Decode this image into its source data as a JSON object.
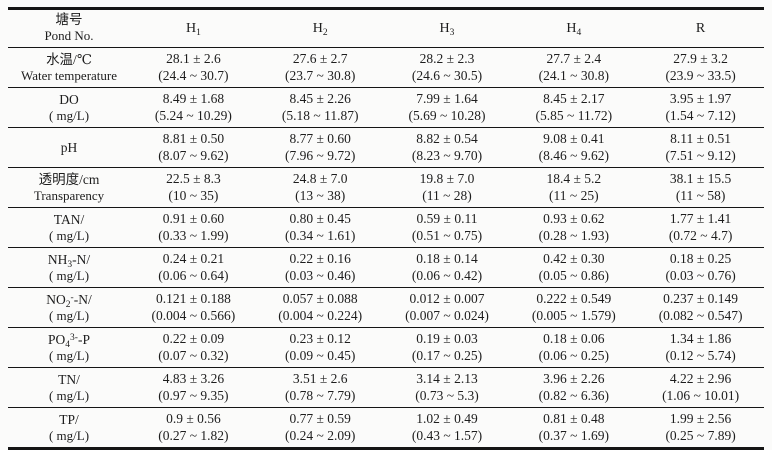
{
  "page": {
    "background": "#fbfbfa",
    "text_color": "#1d1d1d",
    "rule_color": "#151515"
  },
  "table": {
    "header": {
      "label_zh": "塘号",
      "label_en": "Pond No.",
      "columns": [
        {
          "base": "H",
          "sub": "1"
        },
        {
          "base": "H",
          "sub": "2"
        },
        {
          "base": "H",
          "sub": "3"
        },
        {
          "base": "H",
          "sub": "4"
        },
        {
          "base": "R",
          "sub": ""
        }
      ]
    },
    "rows": [
      {
        "key": "water-temperature",
        "label": [
          {
            "t": "水温/℃"
          }
        ],
        "label2": "Water temperature",
        "cells": [
          {
            "mean": "28.1 ± 2.6",
            "range": "(24.4 ~ 30.7)"
          },
          {
            "mean": "27.6 ± 2.7",
            "range": "(23.7 ~ 30.8)"
          },
          {
            "mean": "28.2 ± 2.3",
            "range": "(24.6 ~ 30.5)"
          },
          {
            "mean": "27.7 ± 2.4",
            "range": "(24.1 ~ 30.8)"
          },
          {
            "mean": "27.9 ± 3.2",
            "range": "(23.9 ~ 33.5)"
          }
        ]
      },
      {
        "key": "do",
        "label": [
          {
            "t": "DO"
          }
        ],
        "label2": "( mg/L)",
        "cells": [
          {
            "mean": "8.49 ± 1.68",
            "range": "(5.24 ~ 10.29)"
          },
          {
            "mean": "8.45 ± 2.26",
            "range": "(5.18 ~ 11.87)"
          },
          {
            "mean": "7.99 ± 1.64",
            "range": "(5.69 ~ 10.28)"
          },
          {
            "mean": "8.45 ± 2.17",
            "range": "(5.85 ~ 11.72)"
          },
          {
            "mean": "3.95 ± 1.97",
            "range": "(1.54 ~ 7.12)"
          }
        ]
      },
      {
        "key": "ph",
        "label": [
          {
            "t": "pH"
          }
        ],
        "label2": "",
        "cells": [
          {
            "mean": "8.81 ± 0.50",
            "range": "(8.07 ~ 9.62)"
          },
          {
            "mean": "8.77 ± 0.60",
            "range": "(7.96 ~ 9.72)"
          },
          {
            "mean": "8.82 ± 0.54",
            "range": "(8.23 ~ 9.70)"
          },
          {
            "mean": "9.08 ± 0.41",
            "range": "(8.46 ~ 9.62)"
          },
          {
            "mean": "8.11 ± 0.51",
            "range": "(7.51 ~ 9.12)"
          }
        ]
      },
      {
        "key": "transparency",
        "label": [
          {
            "t": "透明度/cm"
          }
        ],
        "label2": "Transparency",
        "cells": [
          {
            "mean": "22.5 ± 8.3",
            "range": "(10 ~ 35)"
          },
          {
            "mean": "24.8 ± 7.0",
            "range": "(13 ~ 38)"
          },
          {
            "mean": "19.8 ± 7.0",
            "range": "(11 ~ 28)"
          },
          {
            "mean": "18.4 ± 5.2",
            "range": "(11 ~ 25)"
          },
          {
            "mean": "38.1 ± 15.5",
            "range": "(11 ~ 58)"
          }
        ]
      },
      {
        "key": "tan",
        "label": [
          {
            "t": "TAN/"
          }
        ],
        "label2": "( mg/L)",
        "cells": [
          {
            "mean": "0.91 ± 0.60",
            "range": "(0.33 ~ 1.99)"
          },
          {
            "mean": "0.80 ± 0.45",
            "range": "(0.34 ~ 1.61)"
          },
          {
            "mean": "0.59 ± 0.11",
            "range": "(0.51 ~ 0.75)"
          },
          {
            "mean": "0.93 ± 0.62",
            "range": "(0.28 ~ 1.93)"
          },
          {
            "mean": "1.77 ± 1.41",
            "range": "(0.72 ~ 4.7)"
          }
        ]
      },
      {
        "key": "nh3-n",
        "label": [
          {
            "t": "NH"
          },
          {
            "t": "3",
            "v": "sub"
          },
          {
            "t": "-N/"
          }
        ],
        "label2": "( mg/L)",
        "cells": [
          {
            "mean": "0.24 ± 0.21",
            "range": "(0.06 ~ 0.64)"
          },
          {
            "mean": "0.22 ± 0.16",
            "range": "(0.03 ~ 0.46)"
          },
          {
            "mean": "0.18 ± 0.14",
            "range": "(0.06 ~ 0.42)"
          },
          {
            "mean": "0.42 ± 0.30",
            "range": "(0.05 ~ 0.86)"
          },
          {
            "mean": "0.18 ± 0.25",
            "range": "(0.03 ~ 0.76)"
          }
        ]
      },
      {
        "key": "no2-n",
        "label": [
          {
            "t": "NO"
          },
          {
            "t": "2",
            "v": "sub"
          },
          {
            "t": "-",
            "v": "sup"
          },
          {
            "t": "-N/"
          }
        ],
        "label2": "( mg/L)",
        "cells": [
          {
            "mean": "0.121 ± 0.188",
            "range": "(0.004 ~ 0.566)"
          },
          {
            "mean": "0.057 ± 0.088",
            "range": "(0.004 ~ 0.224)"
          },
          {
            "mean": "0.012 ± 0.007",
            "range": "(0.007 ~ 0.024)"
          },
          {
            "mean": "0.222 ± 0.549",
            "range": "(0.005 ~ 1.579)"
          },
          {
            "mean": "0.237 ± 0.149",
            "range": "(0.082 ~ 0.547)"
          }
        ]
      },
      {
        "key": "po4-p",
        "label": [
          {
            "t": "PO"
          },
          {
            "t": "4",
            "v": "sub"
          },
          {
            "t": "3-",
            "v": "sup"
          },
          {
            "t": "-P"
          }
        ],
        "label2": "( mg/L)",
        "cells": [
          {
            "mean": "0.22 ± 0.09",
            "range": "(0.07 ~ 0.32)"
          },
          {
            "mean": "0.23 ± 0.12",
            "range": "(0.09 ~ 0.45)"
          },
          {
            "mean": "0.19 ± 0.03",
            "range": "(0.17 ~ 0.25)"
          },
          {
            "mean": "0.18 ± 0.06",
            "range": "(0.06 ~ 0.25)"
          },
          {
            "mean": "1.34 ± 1.86",
            "range": "(0.12 ~ 5.74)"
          }
        ]
      },
      {
        "key": "tn",
        "label": [
          {
            "t": "TN/"
          }
        ],
        "label2": "( mg/L)",
        "cells": [
          {
            "mean": "4.83 ± 3.26",
            "range": "(0.97 ~ 9.35)"
          },
          {
            "mean": "3.51 ± 2.6",
            "range": "(0.78 ~ 7.79)"
          },
          {
            "mean": "3.14 ± 2.13",
            "range": "(0.73 ~ 5.3)"
          },
          {
            "mean": "3.96 ± 2.26",
            "range": "(0.82 ~ 6.36)"
          },
          {
            "mean": "4.22 ± 2.96",
            "range": "(1.06 ~ 10.01)"
          }
        ]
      },
      {
        "key": "tp",
        "label": [
          {
            "t": "TP/"
          }
        ],
        "label2": "( mg/L)",
        "cells": [
          {
            "mean": "0.9 ± 0.56",
            "range": "(0.27 ~ 1.82)"
          },
          {
            "mean": "0.77 ± 0.59",
            "range": "(0.24 ~ 2.09)"
          },
          {
            "mean": "1.02 ± 0.49",
            "range": "(0.43 ~ 1.57)"
          },
          {
            "mean": "0.81 ± 0.48",
            "range": "(0.37 ~ 1.69)"
          },
          {
            "mean": "1.99 ± 2.56",
            "range": "(0.25 ~ 7.89)"
          }
        ]
      }
    ]
  }
}
